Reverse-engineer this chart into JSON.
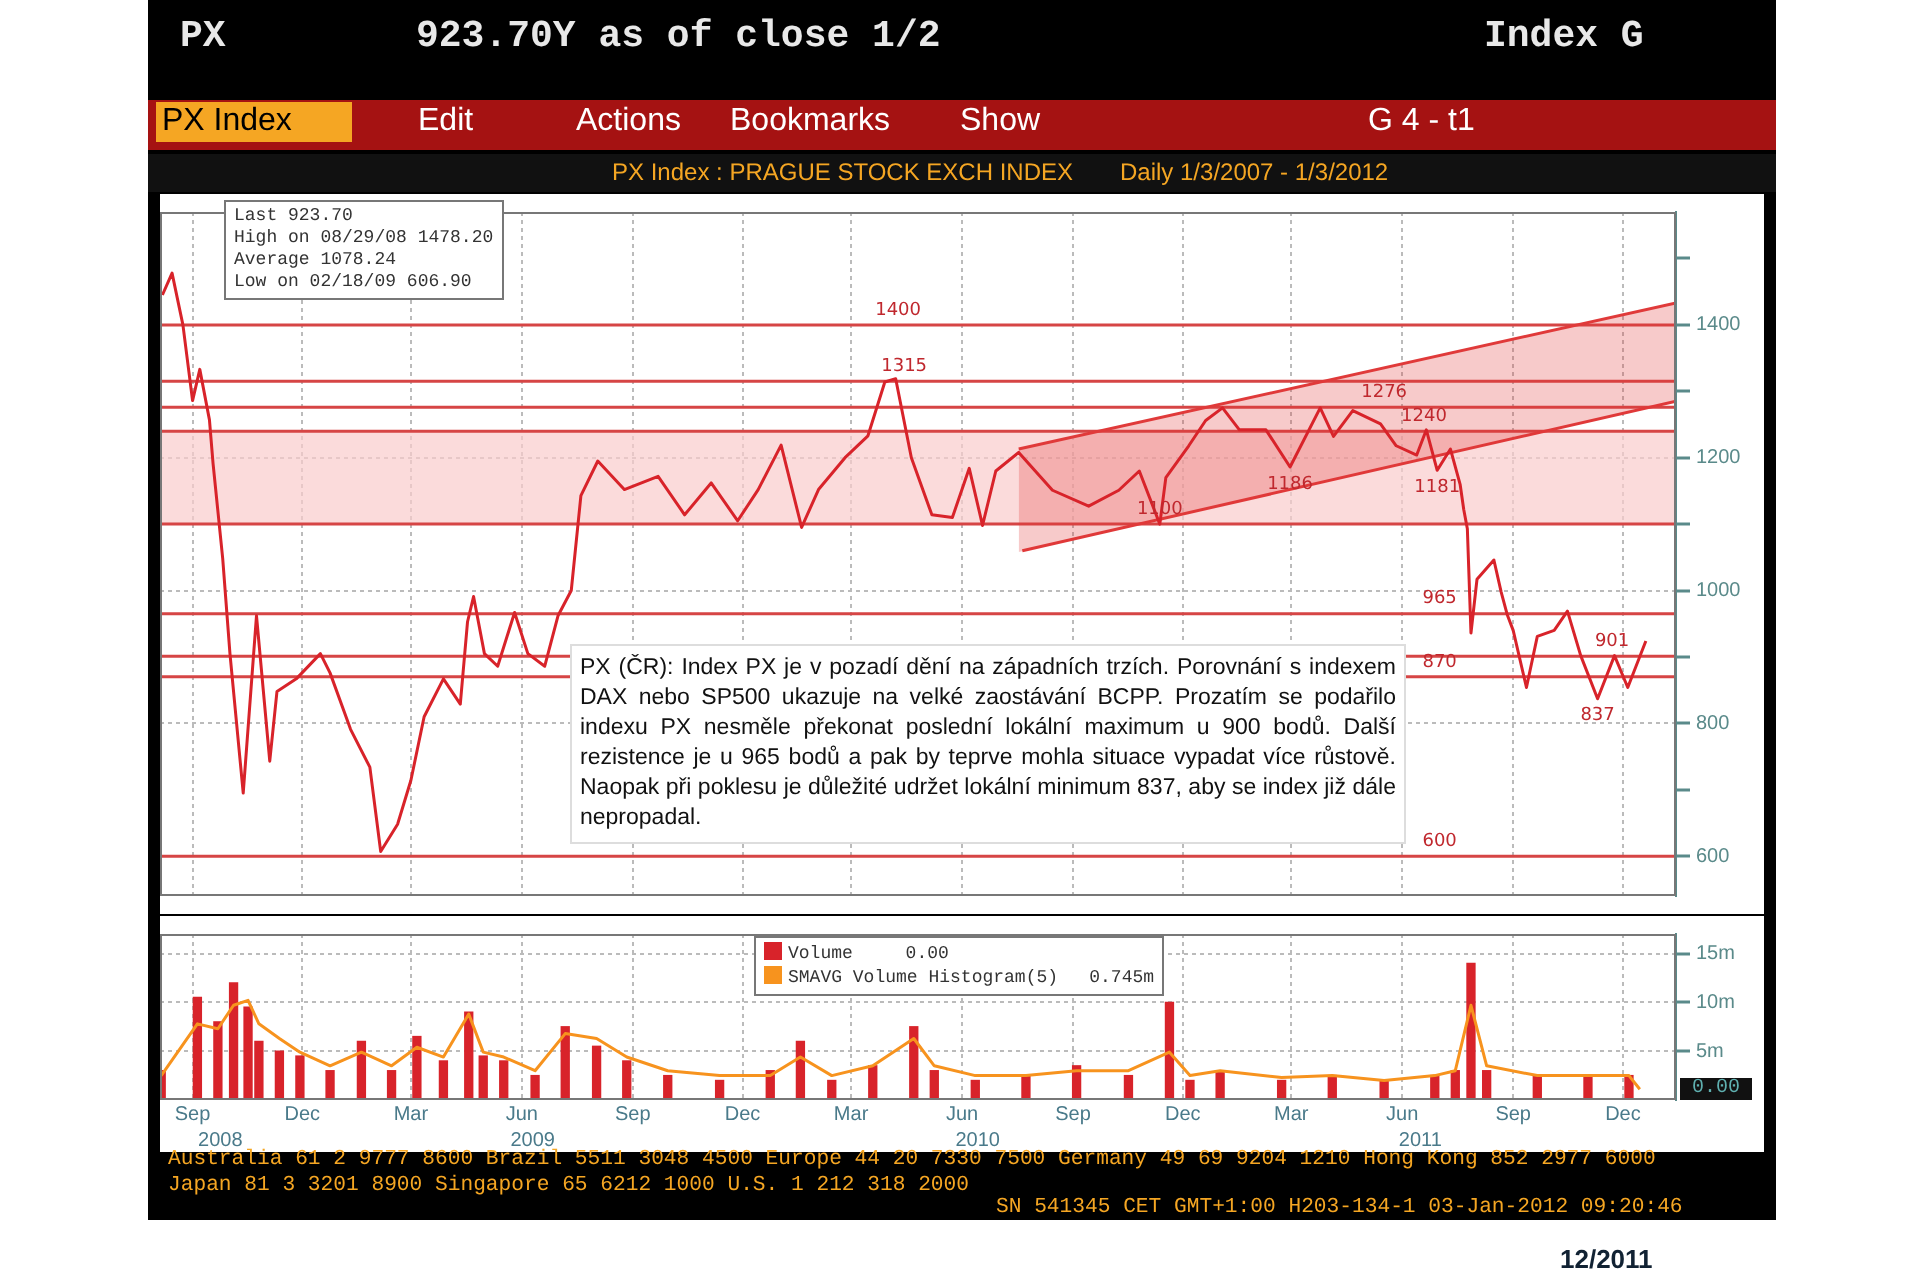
{
  "chart_data": [
    {
      "type": "line",
      "title": "PX Index : PRAGUE STOCK EXCH INDEX",
      "subtitle": "Daily 1/3/2007 - 1/3/2012",
      "xlim": [
        "2008-08-19",
        "2012-01-28"
      ],
      "xticks": [
        {
          "value": "2008-09-15",
          "label": null
        },
        {
          "value": "2008-12-15",
          "label": null
        },
        {
          "value": "2009-03-15",
          "label": null
        },
        {
          "value": "2009-06-15",
          "label": null
        },
        {
          "value": "2009-09-15",
          "label": null
        },
        {
          "value": "2009-12-15",
          "label": null
        },
        {
          "value": "2010-03-15",
          "label": null
        },
        {
          "value": "2010-06-15",
          "label": null
        },
        {
          "value": "2010-09-15",
          "label": null
        },
        {
          "value": "2010-12-15",
          "label": null
        },
        {
          "value": "2011-03-15",
          "label": null
        },
        {
          "value": "2011-06-15",
          "label": null
        },
        {
          "value": "2011-09-15",
          "label": null
        },
        {
          "value": "2011-12-15",
          "label": null
        }
      ],
      "ylim": [
        540,
        1570
      ],
      "yticks": [
        600,
        {
          "value": 700,
          "label": null
        },
        800,
        {
          "value": 900,
          "label": null
        },
        1000,
        {
          "value": 1100,
          "label": null
        },
        1200,
        {
          "value": 1300,
          "label": null
        },
        1400,
        {
          "value": 1500,
          "label": null
        }
      ],
      "tick_labels": "y",
      "grid": true,
      "legend": false,
      "series": [
        {
          "color": "#d8232a",
          "x": [
            "2008-08-21",
            "2008-08-29",
            "2008-09-07",
            "2008-09-15",
            "2008-09-21",
            "2008-09-29",
            "2008-10-02",
            "2008-10-10",
            "2008-10-16",
            "2008-10-27",
            "2008-11-07",
            "2008-11-18",
            "2008-11-24",
            "2008-12-10",
            "2008-12-30",
            "2009-01-07",
            "2009-01-24",
            "2009-02-09",
            "2009-02-18",
            "2009-03-04",
            "2009-03-15",
            "2009-03-26",
            "2009-04-11",
            "2009-04-25",
            "2009-05-01",
            "2009-05-06",
            "2009-05-15",
            "2009-05-26",
            "2009-06-09",
            "2009-06-20",
            "2009-07-04",
            "2009-07-15",
            "2009-07-26",
            "2009-08-03",
            "2009-08-17",
            "2009-09-08",
            "2009-10-06",
            "2009-10-28",
            "2009-11-19",
            "2009-12-11",
            "2009-12-28",
            "2010-01-16",
            "2010-02-02",
            "2010-02-16",
            "2010-03-10",
            "2010-03-29",
            "2010-04-12",
            "2010-04-21",
            "2010-05-04",
            "2010-05-21",
            "2010-06-07",
            "2010-06-21",
            "2010-07-02",
            "2010-07-13",
            "2010-08-01",
            "2010-08-29",
            "2010-09-28",
            "2010-10-23",
            "2010-11-09",
            "2010-11-26",
            "2010-12-01",
            "2010-12-20",
            "2011-01-03",
            "2011-01-17",
            "2011-01-31",
            "2011-02-22",
            "2011-03-14",
            "2011-04-08",
            "2011-04-19",
            "2011-05-05",
            "2011-05-28",
            "2011-06-10",
            "2011-06-27",
            "2011-07-05",
            "2011-07-14",
            "2011-07-25",
            "2011-08-02",
            "2011-08-05",
            "2011-08-08",
            "2011-08-11",
            "2011-08-16",
            "2011-08-30",
            "2011-09-05",
            "2011-09-10",
            "2011-09-15",
            "2011-09-26",
            "2011-10-05",
            "2011-10-19",
            "2011-10-30",
            "2011-11-10",
            "2011-11-24",
            "2011-12-08",
            "2011-12-19",
            "2012-01-03"
          ],
          "values": [
            1445,
            1478,
            1400,
            1286,
            1333,
            1257,
            1191,
            1048,
            905,
            695,
            962,
            743,
            848,
            867,
            905,
            876,
            791,
            734,
            607,
            648,
            714,
            810,
            867,
            829,
            953,
            991,
            905,
            886,
            967,
            905,
            886,
            962,
            1000,
            1143,
            1195,
            1152,
            1172,
            1114,
            1162,
            1105,
            1152,
            1219,
            1095,
            1152,
            1200,
            1233,
            1314,
            1319,
            1200,
            1114,
            1110,
            1184,
            1098,
            1180,
            1208,
            1151,
            1127,
            1151,
            1180,
            1100,
            1170,
            1218,
            1256,
            1275,
            1242,
            1242,
            1186,
            1275,
            1232,
            1271,
            1251,
            1218,
            1204,
            1242,
            1181,
            1213,
            1160,
            1122,
            1093,
            936,
            1017,
            1046,
            998,
            964,
            940,
            854,
            931,
            940,
            969,
            902,
            837,
            902,
            854,
            924
          ]
        },
        {
          "type": "line",
          "color": "#e03a3a",
          "x": [
            "2010-08-01",
            "2012-01-28"
          ],
          "values": [
            1213,
            1433
          ],
          "lower": [
            1058,
            1285
          ],
          "upper": [
            1213,
            1433
          ]
        },
        {
          "type": "line",
          "color": "#e03a3a",
          "x": [
            "2010-08-04",
            "2012-01-28"
          ],
          "values": [
            1060,
            1285
          ]
        }
      ],
      "ref_lines": [
        {
          "axis": "y",
          "value": 1400,
          "color": "#d64545"
        },
        {
          "axis": "y",
          "value": 1315,
          "color": "#d64545"
        },
        {
          "axis": "y",
          "value": 1276,
          "color": "#d64545"
        },
        {
          "axis": "y",
          "value": 1240,
          "color": "#d64545"
        },
        {
          "axis": "y",
          "value": 1100,
          "color": "#d64545"
        },
        {
          "axis": "y",
          "value": 965,
          "color": "#d64545"
        },
        {
          "axis": "y",
          "value": 901,
          "color": "#d64545"
        },
        {
          "axis": "y",
          "value": 870,
          "color": "#d64545"
        },
        {
          "axis": "y",
          "value": 600,
          "color": "#d64545"
        }
      ],
      "bands": [
        {
          "axis": "y",
          "from": 1100,
          "to": 1240,
          "color": "#f9cccc"
        }
      ],
      "annotations": [
        "PX",
        "923.70Y as of close 1/2",
        "Index G",
        "PX Index",
        "Edit",
        "Actions",
        "Bookmarks",
        "Show",
        "G 4 - t1",
        "Last 923.70",
        "High on 08/29/08 1478.20",
        "Average 1078.24",
        "Low on 02/18/09 606.90",
        "PX (ČR): Index PX je v pozadí dění na západních trzích. Porovnání s indexem DAX nebo SP500 ukazuje na velké zaostávání BCPP. Prozatím se podařilo indexu PX nesměle překonat poslední lokální maximum u 900 bodů. Další rezistence je u 965 bodů a pak by teprve mohla situace vypadat více růstově. Naopak při poklesu je důležité udržet lokální minimum 837, aby se index již dále nepropadal.",
        {
          "text": "1400",
          "x": "2010-04-23",
          "y": 1400
        },
        {
          "text": "1315",
          "x": "2010-04-28",
          "y": 1315
        },
        {
          "text": "1276",
          "x": "2011-05-31",
          "y": 1276
        },
        {
          "text": "1240",
          "x": "2011-07-03",
          "y": 1240
        },
        {
          "text": "1186",
          "x": "2011-03-14",
          "y": 1186
        },
        {
          "text": "1181",
          "x": "2011-07-14",
          "y": 1181
        },
        {
          "text": "1100",
          "x": "2010-11-26",
          "y": 1100
        },
        {
          "text": "965",
          "x": "2011-07-16",
          "y": 965
        },
        {
          "text": "870",
          "x": "2011-07-16",
          "y": 870
        },
        {
          "text": "901",
          "x": "2011-12-06",
          "y": 901
        },
        {
          "text": "837",
          "x": "2011-11-24",
          "y": 837
        },
        {
          "text": "600",
          "x": "2011-07-16",
          "y": 600
        }
      ]
    },
    {
      "type": "bar",
      "xlim": [
        "2008-08-19",
        "2012-01-28"
      ],
      "xticks": [
        {
          "value": "2008-09-15",
          "label": "Sep"
        },
        {
          "value": "2008-12-15",
          "label": "Dec"
        },
        {
          "value": "2009-03-15",
          "label": "Mar"
        },
        {
          "value": "2009-06-15",
          "label": "Jun"
        },
        {
          "value": "2009-09-15",
          "label": "Sep"
        },
        {
          "value": "2009-12-15",
          "label": "Dec"
        },
        {
          "value": "2010-03-15",
          "label": "Mar"
        },
        {
          "value": "2010-06-15",
          "label": "Jun"
        },
        {
          "value": "2010-09-15",
          "label": "Sep"
        },
        {
          "value": "2010-12-15",
          "label": "Dec"
        },
        {
          "value": "2011-03-15",
          "label": "Mar"
        },
        {
          "value": "2011-06-15",
          "label": "Jun"
        },
        {
          "value": "2011-09-15",
          "label": "Sep"
        },
        {
          "value": "2011-12-15",
          "label": "Dec"
        }
      ],
      "x2lim": [
        "2008-08-19",
        "2012-01-28"
      ],
      "x2ticks": [
        {
          "value": "2008-10-08",
          "label": "2008"
        },
        {
          "value": "2009-06-24",
          "label": "2009"
        },
        {
          "value": "2010-06-28",
          "label": "2010"
        },
        {
          "value": "2011-06-30",
          "label": "2011"
        }
      ],
      "ylim": [
        0,
        17
      ],
      "yticks": [
        {
          "value": 5,
          "label": "5m"
        },
        {
          "value": 10,
          "label": "10m"
        },
        {
          "value": 15,
          "label": "15m"
        }
      ],
      "grid": true,
      "legend": "top",
      "x": [
        "2008-08-20",
        "2008-09-19",
        "2008-10-06",
        "2008-10-19",
        "2008-10-31",
        "2008-11-09",
        "2008-11-26",
        "2008-12-13",
        "2009-01-07",
        "2009-02-02",
        "2009-02-27",
        "2009-03-20",
        "2009-04-11",
        "2009-05-02",
        "2009-05-14",
        "2009-05-31",
        "2009-06-26",
        "2009-07-21",
        "2009-08-16",
        "2009-09-10",
        "2009-10-14",
        "2009-11-26",
        "2010-01-07",
        "2010-02-01",
        "2010-02-27",
        "2010-04-02",
        "2010-05-06",
        "2010-05-23",
        "2010-06-26",
        "2010-08-07",
        "2010-09-18",
        "2010-10-31",
        "2010-12-04",
        "2010-12-21",
        "2011-01-15",
        "2011-03-07",
        "2011-04-18",
        "2011-05-31",
        "2011-07-12",
        "2011-07-29",
        "2011-08-11",
        "2011-08-24",
        "2011-10-05",
        "2011-11-16",
        "2011-12-20",
        "2011-12-29"
      ],
      "series": [
        {
          "name": "Volume",
          "color": "#d8232a",
          "values": [
            3.0,
            10.5,
            8.0,
            12.0,
            9.5,
            6.0,
            5.0,
            4.5,
            3.0,
            6.0,
            3.0,
            6.5,
            4.0,
            9.0,
            4.5,
            4.0,
            2.5,
            7.5,
            5.5,
            4.0,
            2.5,
            2.0,
            3.0,
            6.0,
            2.0,
            3.5,
            7.5,
            3.0,
            2.0,
            2.5,
            3.5,
            2.5,
            10.0,
            2.0,
            3.0,
            2.0,
            2.5,
            2.0,
            2.5,
            3.0,
            14.0,
            3.0,
            2.5,
            2.5,
            2.5,
            0.0
          ]
        },
        {
          "name": "SMAVG Volume Histogram(5)",
          "type": "line",
          "color": "#f7931e",
          "values": [
            2.5,
            7.8,
            7.3,
            9.7,
            10.2,
            7.8,
            6.3,
            4.9,
            3.5,
            4.9,
            3.5,
            5.4,
            4.4,
            8.8,
            4.9,
            4.4,
            3.0,
            6.8,
            6.3,
            4.4,
            3.0,
            2.5,
            2.5,
            4.4,
            2.5,
            3.5,
            6.3,
            3.5,
            2.5,
            2.5,
            3.0,
            3.0,
            4.9,
            2.5,
            3.0,
            2.3,
            2.5,
            2.0,
            2.5,
            3.0,
            9.7,
            3.5,
            2.5,
            2.5,
            2.5,
            1.1
          ]
        }
      ],
      "annotations": [
        "0.00",
        "0.745m",
        "0.00",
        "Australia 61 2 9777 8600 Brazil 5511 3048 4500 Europe 44 20 7330 7500 Germany 49 69 9204 1210 Hong Kong 852 2977 6000",
        "Japan 81 3 3201 8900 Singapore 65 6212 1000 U.S. 1 212 318 2000",
        "SN 541345 CET GMT+1:00 H203-134-1 03-Jan-2012 09:20:46",
        "12/2011"
      ]
    }
  ]
}
